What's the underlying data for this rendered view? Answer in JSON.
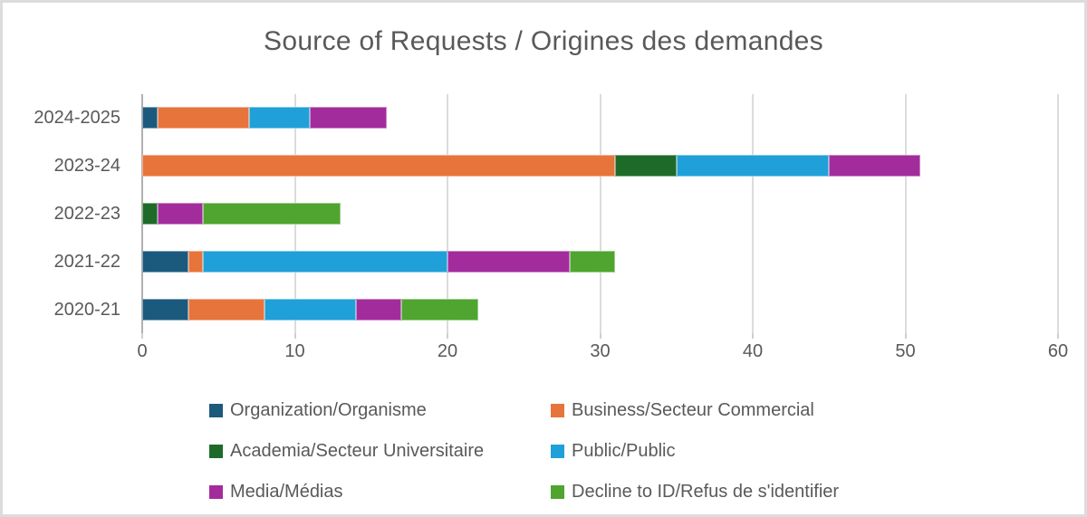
{
  "title": "Source of Requests / Origines des demandes",
  "frame": {
    "border_color": "#dcdcdc",
    "background": "#ffffff"
  },
  "text_color": "#595959",
  "chart_data": {
    "type": "bar",
    "orientation": "horizontal",
    "stacked": true,
    "title": "Source of Requests / Origines des demandes",
    "categories": [
      "2024-2025",
      "2023-24",
      "2022-23",
      "2021-22",
      "2020-21"
    ],
    "series": [
      {
        "key": "organization",
        "name": "Organization/Organisme",
        "color": "#1C5A7D",
        "values": [
          1,
          0,
          0,
          3,
          3
        ]
      },
      {
        "key": "business",
        "name": "Business/Secteur Commercial",
        "color": "#E7743B",
        "values": [
          6,
          31,
          0,
          1,
          5
        ]
      },
      {
        "key": "academia",
        "name": "Academia/Secteur Universitaire",
        "color": "#1E6B29",
        "values": [
          0,
          4,
          1,
          0,
          0
        ]
      },
      {
        "key": "public",
        "name": "Public/Public",
        "color": "#20A0D8",
        "values": [
          4,
          10,
          0,
          16,
          6
        ]
      },
      {
        "key": "media",
        "name": "Media/Médias",
        "color": "#A32C9D",
        "values": [
          5,
          6,
          3,
          8,
          3
        ]
      },
      {
        "key": "decline-to-id",
        "name": "Decline to ID/Refus de s'identifier",
        "color": "#4FA52F",
        "values": [
          0,
          0,
          9,
          3,
          5
        ]
      }
    ],
    "totals": [
      16,
      51,
      13,
      31,
      22
    ],
    "x_axis": {
      "min": 0,
      "max": 60,
      "step": 10,
      "tick_labels": [
        "0",
        "10",
        "20",
        "30",
        "40",
        "50",
        "60"
      ]
    },
    "grid": true,
    "legend_position": "bottom",
    "legend_columns": 2
  }
}
